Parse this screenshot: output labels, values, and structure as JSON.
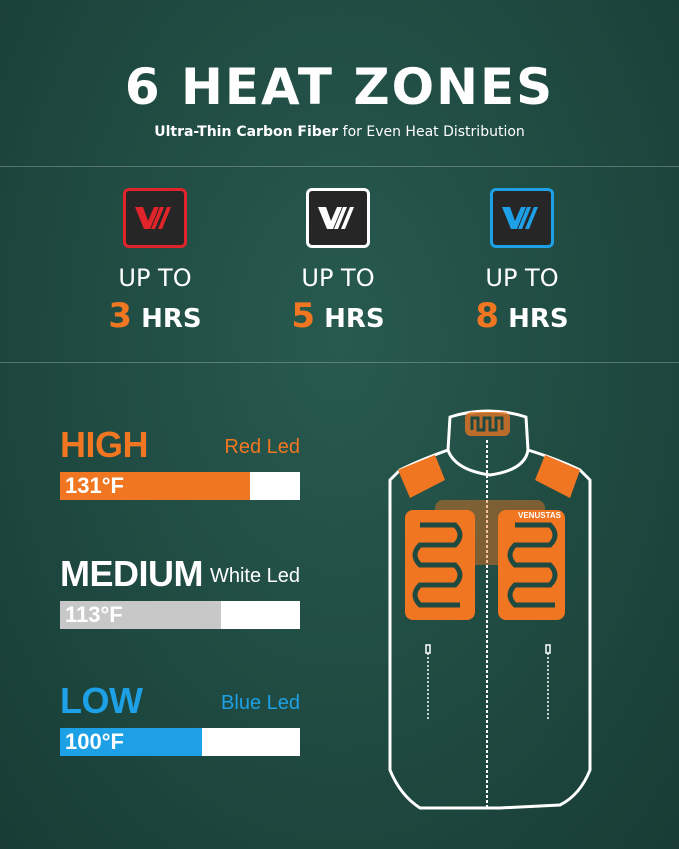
{
  "header": {
    "title": "6 HEAT ZONES",
    "subtitle_bold": "Ultra-Thin Carbon Fiber",
    "subtitle_rest": " for Even Heat Distribution"
  },
  "modes": [
    {
      "up_to": "UP TO",
      "hours": "3",
      "unit": "HRS",
      "led_color": "#e0242a",
      "logo_color": "#e0242a"
    },
    {
      "up_to": "UP TO",
      "hours": "5",
      "unit": "HRS",
      "led_color": "#ffffff",
      "logo_color": "#ffffff"
    },
    {
      "up_to": "UP TO",
      "hours": "8",
      "unit": "HRS",
      "led_color": "#1ea0e6",
      "logo_color": "#1ea0e6"
    }
  ],
  "levels": [
    {
      "name": "HIGH",
      "led": "Red Led",
      "temp": "131°F",
      "color": "#f07621",
      "fill_percent": 79
    },
    {
      "name": "MEDIUM",
      "led": "White Led",
      "temp": "113°F",
      "color": "#ffffff",
      "bar_color": "#c8c8c8",
      "fill_percent": 67
    },
    {
      "name": "LOW",
      "led": "Blue Led",
      "temp": "100°F",
      "color": "#1ea0e6",
      "fill_percent": 59
    }
  ],
  "vest": {
    "brand": "VENUSTAS",
    "heater_color": "#f07621"
  }
}
